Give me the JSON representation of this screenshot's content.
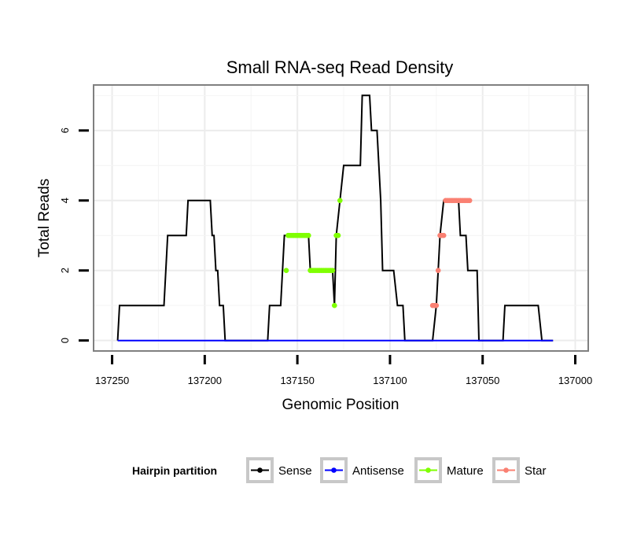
{
  "chart_data": {
    "type": "line",
    "title": "Small RNA-seq Read Density",
    "xlabel": "Genomic Position",
    "ylabel": "Total Reads",
    "xlim": [
      137260,
      136993
    ],
    "x_reversed": true,
    "ylim": [
      -0.3,
      7.3
    ],
    "xticks": [
      137250,
      137200,
      137150,
      137100,
      137050,
      137000
    ],
    "yticks": [
      0,
      2,
      4,
      6
    ],
    "grid": true,
    "legend": {
      "title": "Hairpin partition",
      "position": "bottom",
      "entries": [
        {
          "label": "Sense",
          "color": "#000000"
        },
        {
          "label": "Antisense",
          "color": "#0000ff"
        },
        {
          "label": "Mature",
          "color": "#7fff00"
        },
        {
          "label": "Star",
          "color": "#fa8072"
        }
      ]
    },
    "series": [
      {
        "name": "Sense",
        "color": "#000000",
        "kind": "step",
        "points": [
          [
            137247,
            0
          ],
          [
            137246,
            1
          ],
          [
            137222,
            1
          ],
          [
            137220,
            3
          ],
          [
            137210,
            3
          ],
          [
            137209,
            4
          ],
          [
            137197,
            4
          ],
          [
            137196,
            3
          ],
          [
            137195,
            3
          ],
          [
            137194,
            2
          ],
          [
            137193,
            2
          ],
          [
            137192,
            1
          ],
          [
            137190,
            1
          ],
          [
            137189,
            0
          ],
          [
            137166,
            0
          ],
          [
            137165,
            1
          ],
          [
            137159,
            1
          ],
          [
            137157,
            3
          ],
          [
            137144,
            3
          ],
          [
            137143,
            2
          ],
          [
            137131,
            2
          ],
          [
            137130,
            1
          ],
          [
            137130,
            1
          ],
          [
            137129,
            3
          ],
          [
            137127,
            4
          ],
          [
            137125,
            5
          ],
          [
            137116,
            5
          ],
          [
            137115,
            7
          ],
          [
            137111,
            7
          ],
          [
            137110,
            6
          ],
          [
            137107,
            6
          ],
          [
            137105,
            4
          ],
          [
            137104,
            2
          ],
          [
            137098,
            2
          ],
          [
            137096,
            1
          ],
          [
            137093,
            1
          ],
          [
            137092,
            0
          ],
          [
            137077,
            0
          ],
          [
            137075,
            1
          ],
          [
            137074,
            2
          ],
          [
            137073,
            3
          ],
          [
            137071,
            4
          ],
          [
            137063,
            4
          ],
          [
            137062,
            3
          ],
          [
            137059,
            3
          ],
          [
            137058,
            2
          ],
          [
            137053,
            2
          ],
          [
            137052,
            0
          ],
          [
            137039,
            0
          ],
          [
            137038,
            1
          ],
          [
            137020,
            1
          ],
          [
            137018,
            0
          ],
          [
            137012,
            0
          ]
        ]
      },
      {
        "name": "Antisense",
        "color": "#0000ff",
        "kind": "line",
        "points": [
          [
            137247,
            0
          ],
          [
            137012,
            0
          ]
        ]
      },
      {
        "name": "Mature",
        "color": "#7fff00",
        "kind": "points",
        "points": [
          [
            137156,
            2
          ],
          [
            137155,
            3
          ],
          [
            137154,
            3
          ],
          [
            137153,
            3
          ],
          [
            137152,
            3
          ],
          [
            137151,
            3
          ],
          [
            137150,
            3
          ],
          [
            137149,
            3
          ],
          [
            137148,
            3
          ],
          [
            137147,
            3
          ],
          [
            137146,
            3
          ],
          [
            137145,
            3
          ],
          [
            137144,
            3
          ],
          [
            137143,
            2
          ],
          [
            137142,
            2
          ],
          [
            137141,
            2
          ],
          [
            137140,
            2
          ],
          [
            137139,
            2
          ],
          [
            137138,
            2
          ],
          [
            137137,
            2
          ],
          [
            137136,
            2
          ],
          [
            137135,
            2
          ],
          [
            137134,
            2
          ],
          [
            137133,
            2
          ],
          [
            137132,
            2
          ],
          [
            137131,
            2
          ],
          [
            137130,
            1
          ],
          [
            137129,
            3
          ],
          [
            137128,
            3
          ],
          [
            137127,
            4
          ]
        ]
      },
      {
        "name": "Star",
        "color": "#fa8072",
        "kind": "points",
        "points": [
          [
            137077,
            1
          ],
          [
            137076,
            1
          ],
          [
            137075,
            1
          ],
          [
            137074,
            2
          ],
          [
            137073,
            3
          ],
          [
            137072,
            3
          ],
          [
            137071,
            3
          ],
          [
            137070,
            4
          ],
          [
            137069,
            4
          ],
          [
            137068,
            4
          ],
          [
            137067,
            4
          ],
          [
            137066,
            4
          ],
          [
            137065,
            4
          ],
          [
            137064,
            4
          ],
          [
            137063,
            4
          ],
          [
            137062,
            4
          ],
          [
            137061,
            4
          ],
          [
            137060,
            4
          ],
          [
            137059,
            4
          ],
          [
            137058,
            4
          ],
          [
            137057,
            4
          ]
        ]
      }
    ]
  }
}
